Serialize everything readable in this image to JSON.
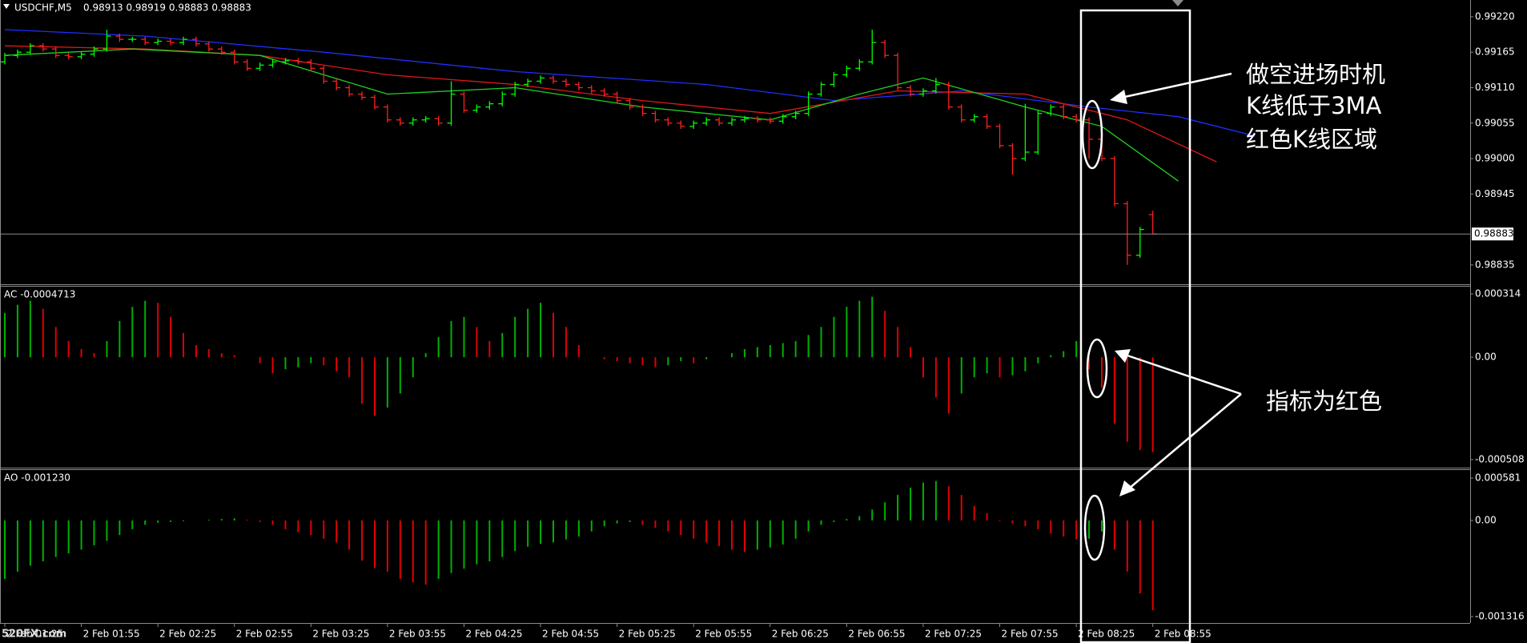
{
  "chart_data": [
    {
      "type": "ohlc",
      "title": "USDCHF,M5",
      "subtitle": "0.98913 0.98919 0.98883 0.98883",
      "categories": [
        "2 Feb 01:25",
        null,
        null,
        null,
        null,
        null,
        "2 Feb 01:55",
        null,
        null,
        null,
        null,
        null,
        "2 Feb 02:25",
        null,
        null,
        null,
        null,
        null,
        "2 Feb 02:55",
        null,
        null,
        null,
        null,
        null,
        "2 Feb 03:25",
        null,
        null,
        null,
        null,
        null,
        "2 Feb 03:55",
        null,
        null,
        null,
        null,
        null,
        "2 Feb 04:25",
        null,
        null,
        null,
        null,
        null,
        "2 Feb 04:55",
        null,
        null,
        null,
        null,
        null,
        "2 Feb 05:25",
        null,
        null,
        null,
        null,
        null,
        "2 Feb 05:55",
        null,
        null,
        null,
        null,
        null,
        "2 Feb 06:25",
        null,
        null,
        null,
        null,
        null,
        "2 Feb 06:55",
        null,
        null,
        null,
        null,
        null,
        "2 Feb 07:25",
        null,
        null,
        null,
        null,
        null,
        "2 Feb 07:55",
        null,
        null,
        null,
        null,
        null,
        "2 Feb 08:25",
        null,
        null,
        null,
        null,
        null,
        "2 Feb 08:55"
      ],
      "open": [
        0.9915,
        0.9916,
        0.99165,
        0.99175,
        0.9917,
        0.9916,
        0.99158,
        0.99162,
        0.9917,
        0.9919,
        0.99185,
        0.99185,
        0.9918,
        0.99182,
        0.9918,
        0.99185,
        0.99178,
        0.9917,
        0.99165,
        0.9915,
        0.9914,
        0.99145,
        0.9915,
        0.99152,
        0.9915,
        0.9914,
        0.9912,
        0.9911,
        0.991,
        0.99095,
        0.9908,
        0.9906,
        0.99055,
        0.9906,
        0.99062,
        0.99055,
        0.991,
        0.99075,
        0.9908,
        0.99085,
        0.991,
        0.99115,
        0.9912,
        0.99125,
        0.9912,
        0.99115,
        0.9911,
        0.99105,
        0.991,
        0.9909,
        0.9908,
        0.9907,
        0.9906,
        0.99055,
        0.9905,
        0.99055,
        0.9906,
        0.99055,
        0.9906,
        0.99062,
        0.9906,
        0.99058,
        0.99065,
        0.9907,
        0.991,
        0.99115,
        0.9913,
        0.9914,
        0.9915,
        0.9918,
        0.9916,
        0.9911,
        0.991,
        0.99105,
        0.99115,
        0.9908,
        0.9906,
        0.99065,
        0.9905,
        0.9902,
        0.99,
        0.9901,
        0.9907,
        0.9908,
        0.99065,
        0.9906,
        0.9903,
        0.99,
        0.9893,
        0.9885,
        0.98913
      ],
      "high": [
        0.99164,
        0.99169,
        0.99179,
        0.99179,
        0.99174,
        0.99164,
        0.99166,
        0.99174,
        0.992,
        0.99194,
        0.99189,
        0.99189,
        0.99186,
        0.99186,
        0.99189,
        0.99189,
        0.99182,
        0.99174,
        0.99169,
        0.99154,
        0.99149,
        0.99154,
        0.99156,
        0.99156,
        0.99154,
        0.99144,
        0.99124,
        0.99114,
        0.99104,
        0.99099,
        0.99084,
        0.99064,
        0.99064,
        0.99066,
        0.99066,
        0.9912,
        0.99104,
        0.99084,
        0.99089,
        0.99104,
        0.99119,
        0.99124,
        0.99129,
        0.99129,
        0.99124,
        0.99119,
        0.99114,
        0.99109,
        0.99104,
        0.99094,
        0.99084,
        0.99074,
        0.99064,
        0.99059,
        0.99059,
        0.99064,
        0.99064,
        0.99064,
        0.99066,
        0.99066,
        0.99064,
        0.99069,
        0.99074,
        0.99104,
        0.99119,
        0.99134,
        0.99144,
        0.99154,
        0.992,
        0.99184,
        0.99164,
        0.99114,
        0.99109,
        0.99125,
        0.99119,
        0.99084,
        0.99069,
        0.99069,
        0.99054,
        0.99024,
        0.99085,
        0.99074,
        0.99084,
        0.99084,
        0.99069,
        0.99064,
        0.99034,
        0.99004,
        0.98934,
        0.98894,
        0.98919
      ],
      "low": [
        0.99146,
        0.99156,
        0.99161,
        0.99166,
        0.99156,
        0.99154,
        0.99154,
        0.99158,
        0.99166,
        0.99181,
        0.99181,
        0.99176,
        0.99176,
        0.99176,
        0.99176,
        0.99174,
        0.99166,
        0.99161,
        0.99146,
        0.99136,
        0.99136,
        0.99141,
        0.99146,
        0.99146,
        0.99136,
        0.99116,
        0.99106,
        0.99096,
        0.99091,
        0.99076,
        0.99056,
        0.99051,
        0.99051,
        0.99056,
        0.99051,
        0.99051,
        0.99071,
        0.99071,
        0.99076,
        0.99081,
        0.99096,
        0.99111,
        0.99116,
        0.99116,
        0.99111,
        0.99106,
        0.99101,
        0.99096,
        0.99086,
        0.99076,
        0.99066,
        0.99056,
        0.99051,
        0.99046,
        0.99046,
        0.99051,
        0.99051,
        0.99051,
        0.99056,
        0.99056,
        0.99054,
        0.99054,
        0.99061,
        0.99066,
        0.99096,
        0.99111,
        0.99126,
        0.99136,
        0.99146,
        0.99156,
        0.99106,
        0.99096,
        0.99096,
        0.99101,
        0.99076,
        0.99056,
        0.99056,
        0.99046,
        0.99016,
        0.98975,
        0.98996,
        0.99006,
        0.99066,
        0.99061,
        0.99056,
        0.99,
        0.98996,
        0.98926,
        0.98835,
        0.98846,
        0.98883
      ],
      "close": [
        0.9916,
        0.99165,
        0.99175,
        0.9917,
        0.9916,
        0.99158,
        0.99162,
        0.9917,
        0.9919,
        0.99185,
        0.99185,
        0.9918,
        0.99182,
        0.9918,
        0.99185,
        0.99178,
        0.9917,
        0.99165,
        0.9915,
        0.9914,
        0.99145,
        0.9915,
        0.99152,
        0.9915,
        0.9914,
        0.9912,
        0.9911,
        0.991,
        0.99095,
        0.9908,
        0.9906,
        0.99055,
        0.9906,
        0.99062,
        0.99055,
        0.991,
        0.99075,
        0.9908,
        0.99085,
        0.991,
        0.99115,
        0.9912,
        0.99125,
        0.9912,
        0.99115,
        0.9911,
        0.99105,
        0.991,
        0.9909,
        0.9908,
        0.9907,
        0.9906,
        0.99055,
        0.9905,
        0.99055,
        0.9906,
        0.99055,
        0.9906,
        0.99062,
        0.9906,
        0.99058,
        0.99065,
        0.9907,
        0.991,
        0.99115,
        0.9913,
        0.9914,
        0.9915,
        0.9918,
        0.9916,
        0.9911,
        0.991,
        0.99105,
        0.99115,
        0.9908,
        0.9906,
        0.99065,
        0.9905,
        0.9902,
        0.99,
        0.9901,
        0.9907,
        0.9908,
        0.99065,
        0.9906,
        0.9903,
        0.99,
        0.9893,
        0.9885,
        0.9889,
        0.98883
      ],
      "up_color": "#00ff00",
      "down_color": "#ff2020",
      "series": [
        {
          "color": "#1f2fff",
          "x": [
            0,
            11,
            25,
            40,
            55,
            65,
            75,
            85,
            92,
            98
          ],
          "values": [
            0.992,
            0.9919,
            0.99165,
            0.99135,
            0.99115,
            0.9909,
            0.99105,
            0.9908,
            0.99065,
            0.99035
          ]
        },
        {
          "color": "#e01818",
          "x": [
            0,
            11,
            20,
            30,
            40,
            50,
            60,
            70,
            80,
            88,
            95
          ],
          "values": [
            0.99175,
            0.9917,
            0.9916,
            0.9913,
            0.99115,
            0.9909,
            0.9907,
            0.99105,
            0.991,
            0.9906,
            0.98995
          ]
        },
        {
          "color": "#20d020",
          "x": [
            0,
            10,
            20,
            30,
            40,
            50,
            60,
            67,
            72,
            80,
            86,
            92
          ],
          "values": [
            0.9916,
            0.9917,
            0.9916,
            0.991,
            0.9911,
            0.9908,
            0.9906,
            0.991,
            0.99125,
            0.9908,
            0.9905,
            0.98965
          ]
        }
      ],
      "ylim": [
        0.98805,
        0.99246
      ],
      "yticks": [
        {
          "value": 0.9922,
          "label": "0.99220"
        },
        0.99165,
        {
          "value": 0.9911,
          "label": "0.99110"
        },
        0.99055,
        {
          "value": 0.99,
          "label": "0.99000"
        },
        0.98945,
        0.98835
      ],
      "last_price": 0.98883
    },
    {
      "type": "bar",
      "title": "AC -0.0004713",
      "up_color": "#00b000",
      "down_color": "#e00000",
      "values": [
        0.00022,
        0.00026,
        0.00028,
        0.00024,
        0.00015,
        8e-05,
        4e-05,
        2e-05,
        8e-05,
        0.00018,
        0.00025,
        0.00028,
        0.00027,
        0.0002,
        0.00012,
        6e-05,
        4e-05,
        2e-05,
        1e-05,
        0,
        -3e-05,
        -8e-05,
        -6e-05,
        -5e-05,
        -3e-05,
        -4e-05,
        -7e-05,
        -0.0001,
        -0.00023,
        -0.00029,
        -0.00025,
        -0.00018,
        -0.0001,
        2e-05,
        0.0001,
        0.00018,
        0.0002,
        0.00015,
        8e-05,
        0.00012,
        0.0002,
        0.00024,
        0.00027,
        0.00022,
        0.00015,
        6e-05,
        0,
        -1e-05,
        -2e-05,
        -3e-05,
        -4e-05,
        -5e-05,
        -4e-05,
        -2e-05,
        -3e-05,
        -1e-05,
        0,
        2e-05,
        4e-05,
        5e-05,
        6e-05,
        7e-05,
        8e-05,
        0.00011,
        0.00015,
        0.0002,
        0.00025,
        0.00028,
        0.0003,
        0.00023,
        0.00015,
        5e-05,
        -0.0001,
        -0.0002,
        -0.00028,
        -0.00018,
        -0.0001,
        -8e-05,
        -0.0001,
        -9e-05,
        -7e-05,
        -3e-05,
        1e-05,
        3e-05,
        8e-05,
        -6e-05,
        -0.00015,
        -0.00033,
        -0.00042,
        -0.00046,
        -0.000471
      ],
      "ylim": [
        -0.000548,
        0.00035
      ],
      "yticks": [
        0.000314,
        {
          "value": 0,
          "label": "0.00"
        },
        -0.000508
      ]
    },
    {
      "type": "bar",
      "title": "AO -0.001230",
      "up_color": "#00b000",
      "down_color": "#e00000",
      "values": [
        -0.0008,
        -0.0007,
        -0.00062,
        -0.00056,
        -0.0005,
        -0.00045,
        -0.0004,
        -0.00034,
        -0.00028,
        -0.0002,
        -0.00012,
        -6e-05,
        -3e-05,
        -2e-05,
        -1e-05,
        0,
        1e-05,
        2e-05,
        3e-05,
        1e-05,
        -2e-05,
        -6e-05,
        -0.00012,
        -0.00016,
        -0.0002,
        -0.00025,
        -0.0003,
        -0.0004,
        -0.00055,
        -0.00065,
        -0.0007,
        -0.0008,
        -0.00085,
        -0.00088,
        -0.0008,
        -0.00072,
        -0.00066,
        -0.0006,
        -0.00056,
        -0.0005,
        -0.00042,
        -0.00036,
        -0.00032,
        -0.0003,
        -0.00026,
        -0.00022,
        -0.00015,
        -8e-05,
        -4e-05,
        -2e-05,
        -6e-05,
        -0.0001,
        -0.00015,
        -0.0002,
        -0.00025,
        -0.0003,
        -0.00035,
        -0.0004,
        -0.00043,
        -0.0004,
        -0.00037,
        -0.00033,
        -0.00025,
        -0.00015,
        -6e-05,
        -2e-05,
        2e-05,
        6e-05,
        0.00015,
        0.00025,
        0.00035,
        0.00045,
        0.00052,
        0.00054,
        0.00047,
        0.00035,
        0.0002,
        0.0001,
        -1e-05,
        -4e-05,
        -8e-05,
        -0.00012,
        -0.00018,
        -0.00022,
        -0.00026,
        -0.00025,
        -0.00015,
        -0.0004,
        -0.0007,
        -0.001,
        -0.00123
      ],
      "ylim": [
        -0.001404,
        0.000702
      ],
      "yticks": [
        0.000581,
        {
          "value": 0,
          "label": "0.00"
        },
        -0.001316
      ]
    }
  ],
  "notes": [
    "做空进场时机",
    "K线低于3MA",
    "红色K线区域",
    "指标为红色"
  ],
  "watermark": "520FX.com"
}
